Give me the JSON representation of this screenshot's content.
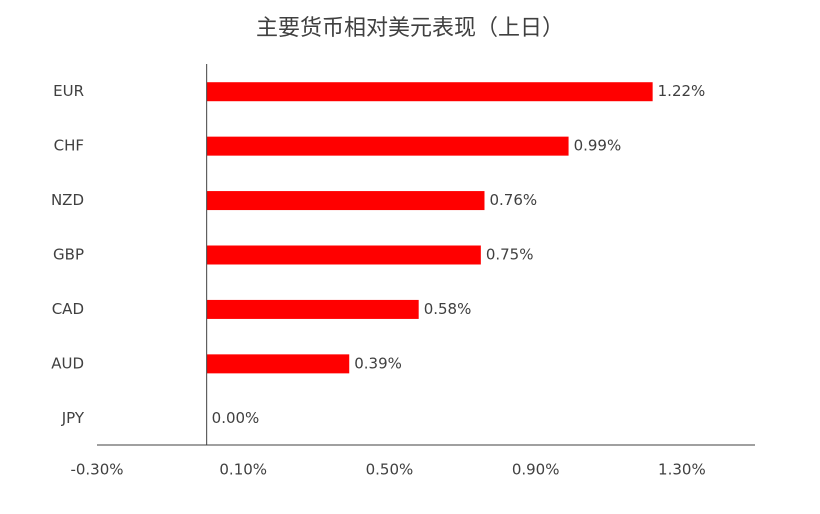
{
  "chart_data": {
    "type": "hbar",
    "title": "主要货币相对美元表现（上日）",
    "categories": [
      "EUR",
      "CHF",
      "NZD",
      "GBP",
      "CAD",
      "AUD",
      "JPY"
    ],
    "values": [
      1.22,
      0.99,
      0.76,
      0.75,
      0.58,
      0.39,
      0.0
    ],
    "value_labels": [
      "1.22%",
      "0.99%",
      "0.76%",
      "0.75%",
      "0.58%",
      "0.39%",
      "0.00%"
    ],
    "color": "#ff0000",
    "xlim": [
      -0.3,
      1.5
    ],
    "xticks": [
      {
        "value": -0.3,
        "label": "-0.30%"
      },
      {
        "value": 0.1,
        "label": "0.10%"
      },
      {
        "value": 0.5,
        "label": "0.50%"
      },
      {
        "value": 0.9,
        "label": "0.90%"
      },
      {
        "value": 1.3,
        "label": "1.30%"
      }
    ],
    "grid": false
  }
}
